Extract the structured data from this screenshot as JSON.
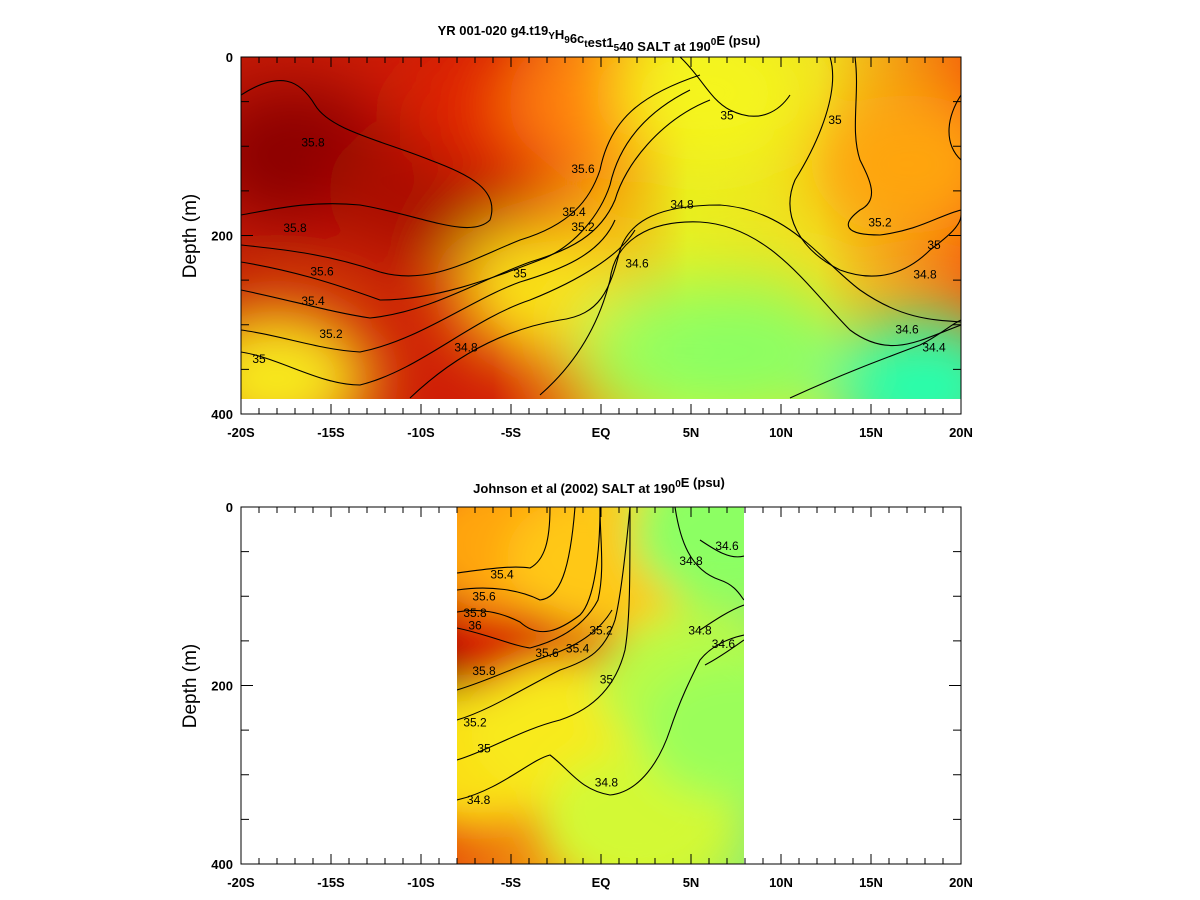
{
  "chart_data": [
    {
      "type": "contour",
      "title": {
        "parts": [
          {
            "text": "YR 001-020 g4.t19",
            "style": "normal"
          },
          {
            "text": "Y",
            "style": "sub"
          },
          {
            "text": "H",
            "style": "normal"
          },
          {
            "text": "9",
            "style": "sub"
          },
          {
            "text": "6c",
            "style": "normal"
          },
          {
            "text": "t",
            "style": "sub"
          },
          {
            "text": "est1",
            "style": "normal"
          },
          {
            "text": "5",
            "style": "sub"
          },
          {
            "text": "40 SALT at 190",
            "style": "normal"
          },
          {
            "text": "0",
            "style": "sup"
          },
          {
            "text": "E (psu)",
            "style": "normal"
          }
        ]
      },
      "ylabel": "Depth (m)",
      "xlim": [
        -20,
        20
      ],
      "ylim": [
        0,
        400
      ],
      "y_inverted": true,
      "data_range": {
        "x": [
          -20,
          20
        ],
        "y": [
          0,
          385
        ]
      },
      "xticks": [
        {
          "value": -20,
          "label": "-20S"
        },
        {
          "value": -15,
          "label": "-15S"
        },
        {
          "value": -10,
          "label": "-10S"
        },
        {
          "value": -5,
          "label": "-5S"
        },
        {
          "value": 0,
          "label": "EQ"
        },
        {
          "value": 5,
          "label": "5N"
        },
        {
          "value": 10,
          "label": "10N"
        },
        {
          "value": 15,
          "label": "15N"
        },
        {
          "value": 20,
          "label": "20N"
        }
      ],
      "yticks": [
        {
          "value": 0,
          "label": "0"
        },
        {
          "value": 200,
          "label": "200"
        },
        {
          "value": 400,
          "label": "400"
        }
      ],
      "salinity_field_centers": [
        {
          "x": -17,
          "y": 110,
          "value": 36.1
        },
        {
          "x": -10,
          "y": 150,
          "value": 36.0
        },
        {
          "x": -5,
          "y": 60,
          "value": 35.7
        },
        {
          "x": -3,
          "y": 260,
          "value": 35.0
        },
        {
          "x": 0,
          "y": 50,
          "value": 35.3
        },
        {
          "x": 4,
          "y": 330,
          "value": 34.55
        },
        {
          "x": 6,
          "y": 40,
          "value": 34.9
        },
        {
          "x": 8,
          "y": 330,
          "value": 34.5
        },
        {
          "x": 17,
          "y": 120,
          "value": 35.2
        },
        {
          "x": 18,
          "y": 370,
          "value": 34.2
        },
        {
          "x": -18,
          "y": 360,
          "value": 34.95
        }
      ],
      "contour_labels": [
        {
          "text": "35.8",
          "x": -16,
          "y": 100
        },
        {
          "text": "35.8",
          "x": -17,
          "y": 196
        },
        {
          "text": "35.6",
          "x": -15.5,
          "y": 245
        },
        {
          "text": "35.4",
          "x": -16,
          "y": 278
        },
        {
          "text": "35.2",
          "x": -15,
          "y": 315
        },
        {
          "text": "35",
          "x": -19,
          "y": 343
        },
        {
          "text": "35.6",
          "x": -1,
          "y": 130
        },
        {
          "text": "35.4",
          "x": -1.5,
          "y": 178
        },
        {
          "text": "35.2",
          "x": -1,
          "y": 195
        },
        {
          "text": "35",
          "x": -4.5,
          "y": 247
        },
        {
          "text": "34.8",
          "x": -7.5,
          "y": 330
        },
        {
          "text": "34.8",
          "x": 4.5,
          "y": 170
        },
        {
          "text": "34.6",
          "x": 2,
          "y": 236
        },
        {
          "text": "35",
          "x": 7,
          "y": 70
        },
        {
          "text": "35",
          "x": 13,
          "y": 75
        },
        {
          "text": "35.2",
          "x": 15.5,
          "y": 190
        },
        {
          "text": "35",
          "x": 18.5,
          "y": 215
        },
        {
          "text": "34.8",
          "x": 18,
          "y": 248
        },
        {
          "text": "34.6",
          "x": 17,
          "y": 310
        },
        {
          "text": "34.4",
          "x": 18.5,
          "y": 330
        }
      ]
    },
    {
      "type": "contour",
      "title": {
        "parts": [
          {
            "text": "Johnson et al (2002) SALT at 190",
            "style": "normal"
          },
          {
            "text": "0",
            "style": "sup"
          },
          {
            "text": "E (psu)",
            "style": "normal"
          }
        ]
      },
      "ylabel": "Depth (m)",
      "xlim": [
        -20,
        20
      ],
      "ylim": [
        0,
        400
      ],
      "y_inverted": true,
      "data_range": {
        "x": [
          -8,
          8
        ],
        "y": [
          0,
          400
        ]
      },
      "xticks": [
        {
          "value": -20,
          "label": "-20S"
        },
        {
          "value": -15,
          "label": "-15S"
        },
        {
          "value": -10,
          "label": "-10S"
        },
        {
          "value": -5,
          "label": "-5S"
        },
        {
          "value": 0,
          "label": "EQ"
        },
        {
          "value": 5,
          "label": "5N"
        },
        {
          "value": 10,
          "label": "10N"
        },
        {
          "value": 15,
          "label": "15N"
        },
        {
          "value": 20,
          "label": "20N"
        }
      ],
      "yticks": [
        {
          "value": 0,
          "label": "0"
        },
        {
          "value": 200,
          "label": "200"
        },
        {
          "value": 400,
          "label": "400"
        }
      ],
      "salinity_field_centers": [
        {
          "x": -7,
          "y": 160,
          "value": 36.2
        },
        {
          "x": -4,
          "y": 130,
          "value": 35.8
        },
        {
          "x": -5,
          "y": 40,
          "value": 35.2
        },
        {
          "x": -7,
          "y": 280,
          "value": 35.0
        },
        {
          "x": -2,
          "y": 250,
          "value": 34.95
        },
        {
          "x": 0,
          "y": 60,
          "value": 35.1
        },
        {
          "x": 2,
          "y": 350,
          "value": 34.75
        },
        {
          "x": 5,
          "y": 200,
          "value": 34.65
        },
        {
          "x": 7,
          "y": 30,
          "value": 34.5
        },
        {
          "x": 7.5,
          "y": 250,
          "value": 34.55
        }
      ],
      "contour_labels": [
        {
          "text": "35.4",
          "x": -5.5,
          "y": 80
        },
        {
          "text": "35.6",
          "x": -6.5,
          "y": 105
        },
        {
          "text": "35.8",
          "x": -7,
          "y": 123
        },
        {
          "text": "36",
          "x": -7,
          "y": 137
        },
        {
          "text": "35.6",
          "x": -3,
          "y": 168
        },
        {
          "text": "35.4",
          "x": -1.3,
          "y": 163
        },
        {
          "text": "35.2",
          "x": 0,
          "y": 143
        },
        {
          "text": "35.8",
          "x": -6.5,
          "y": 188
        },
        {
          "text": "35",
          "x": 0.3,
          "y": 198
        },
        {
          "text": "35.2",
          "x": -7,
          "y": 246
        },
        {
          "text": "35",
          "x": -6.5,
          "y": 275
        },
        {
          "text": "34.8",
          "x": 0.3,
          "y": 313
        },
        {
          "text": "34.8",
          "x": -6.8,
          "y": 333
        },
        {
          "text": "34.8",
          "x": 5,
          "y": 65
        },
        {
          "text": "34.6",
          "x": 7,
          "y": 48
        },
        {
          "text": "34.8",
          "x": 5.5,
          "y": 143
        },
        {
          "text": "34.6",
          "x": 6.8,
          "y": 158
        }
      ]
    }
  ]
}
